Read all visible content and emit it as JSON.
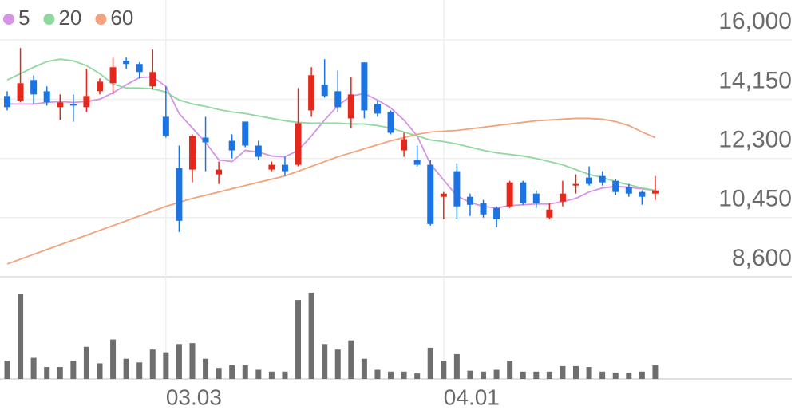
{
  "chart_data": {
    "type": "candlestick",
    "categories": [
      null,
      null,
      null,
      null,
      null,
      null,
      null,
      null,
      null,
      null,
      null,
      null,
      "03.03",
      null,
      null,
      null,
      null,
      null,
      null,
      null,
      null,
      null,
      null,
      null,
      null,
      null,
      null,
      null,
      null,
      null,
      null,
      null,
      null,
      "04.01",
      null,
      null,
      null,
      null,
      null,
      null,
      null,
      null,
      null,
      null,
      null,
      null,
      null,
      null,
      null,
      null
    ],
    "open": [
      14250,
      14100,
      14750,
      14400,
      13900,
      14000,
      13900,
      14400,
      14650,
      15350,
      15250,
      14550,
      13600,
      12000,
      11950,
      12950,
      11800,
      12850,
      13450,
      12700,
      11950,
      12100,
      12100,
      13800,
      14600,
      14400,
      13550,
      15300,
      14000,
      13750,
      12550,
      12250,
      12100,
      11100,
      11900,
      11100,
      10900,
      10750,
      10800,
      11550,
      11200,
      10450,
      10950,
      11450,
      11700,
      11750,
      11600,
      11400,
      11250,
      11200
    ],
    "high": [
      14400,
      15750,
      14900,
      14550,
      14300,
      14300,
      15100,
      14800,
      15450,
      15450,
      15300,
      15700,
      14550,
      12700,
      13050,
      13600,
      12200,
      13050,
      13450,
      12850,
      12200,
      12350,
      14500,
      15150,
      15400,
      15050,
      14850,
      15300,
      14100,
      13800,
      13100,
      12700,
      12250,
      11250,
      12150,
      11200,
      11000,
      10800,
      11600,
      11600,
      11300,
      10900,
      11600,
      11800,
      12050,
      11900,
      11650,
      11500,
      11300,
      11750
    ],
    "low": [
      13800,
      14050,
      14000,
      13950,
      13500,
      13450,
      13750,
      14300,
      14300,
      15100,
      14800,
      14450,
      12950,
      10000,
      11550,
      11900,
      11500,
      12300,
      12650,
      12250,
      11900,
      11750,
      12050,
      13600,
      14200,
      13750,
      13250,
      13550,
      13600,
      13050,
      12350,
      12050,
      10200,
      10400,
      10400,
      10500,
      10450,
      10150,
      10750,
      10850,
      10750,
      10400,
      10800,
      11200,
      11450,
      11450,
      11150,
      11100,
      10850,
      11000
    ],
    "close": [
      13900,
      14650,
      14300,
      14050,
      14050,
      13950,
      14250,
      14700,
      15150,
      15250,
      15000,
      15000,
      13000,
      10350,
      13000,
      12800,
      11950,
      12550,
      12700,
      12350,
      12100,
      11900,
      13400,
      14900,
      14250,
      13900,
      14300,
      13800,
      13700,
      13100,
      12900,
      12100,
      10250,
      11200,
      10800,
      10850,
      10550,
      10400,
      11550,
      10900,
      10900,
      10700,
      11200,
      11500,
      11500,
      11550,
      11250,
      11200,
      11100,
      11300
    ],
    "up_color": "#e5281c",
    "down_color": "#1b74e4",
    "series": [
      {
        "name": "5",
        "color": "#d593e6",
        "values": [
          14000,
          14000,
          14000,
          14050,
          14075,
          14050,
          14075,
          14150,
          14350,
          14600,
          14825,
          14850,
          14550,
          13700,
          13250,
          12800,
          12250,
          12200,
          12550,
          12500,
          12375,
          12350,
          12550,
          13000,
          13500,
          13950,
          14250,
          14325,
          14125,
          13875,
          13500,
          13000,
          12125,
          11625,
          11125,
          10925,
          10800,
          10750,
          10825,
          10850,
          10875,
          10875,
          10950,
          11050,
          11250,
          11375,
          11425,
          11400,
          11350,
          11300
        ]
      },
      {
        "name": "20",
        "color": "#8fd8a0",
        "values": [
          14750,
          14950,
          15150,
          15325,
          15400,
          15350,
          15200,
          14950,
          14625,
          14500,
          14500,
          14475,
          14375,
          14125,
          14000,
          13925,
          13825,
          13750,
          13700,
          13625,
          13550,
          13475,
          13425,
          13400,
          13400,
          13400,
          13375,
          13375,
          13325,
          13250,
          13125,
          13000,
          12875,
          12825,
          12750,
          12650,
          12550,
          12475,
          12425,
          12375,
          12300,
          12200,
          12100,
          11950,
          11800,
          11700,
          11575,
          11475,
          11375,
          11300
        ]
      },
      {
        "name": "60",
        "color": "#f2a27c",
        "values": [
          9000,
          9150,
          9300,
          9450,
          9600,
          9750,
          9900,
          10050,
          10200,
          10350,
          10500,
          10650,
          10800,
          10925,
          11050,
          11150,
          11250,
          11350,
          11450,
          11550,
          11650,
          11750,
          11900,
          12050,
          12200,
          12350,
          12475,
          12600,
          12725,
          12850,
          12950,
          13050,
          13125,
          13150,
          13175,
          13225,
          13275,
          13325,
          13375,
          13425,
          13475,
          13500,
          13525,
          13550,
          13550,
          13525,
          13450,
          13325,
          13125,
          12950
        ]
      }
    ],
    "ylim": [
      8600,
      17250
    ],
    "yticks": [
      {
        "value": 16000,
        "label": "16,000"
      },
      {
        "value": 14150,
        "label": "14,150"
      },
      {
        "value": 12300,
        "label": "12,300"
      },
      {
        "value": 10450,
        "label": "10,450"
      },
      {
        "value": 8600,
        "label": "8,600"
      }
    ],
    "grid": true,
    "volume": {
      "color": "#6e6e6e",
      "ylim": [
        0,
        100
      ],
      "values": [
        20,
        93,
        23,
        13,
        13,
        20,
        35,
        17,
        43,
        22,
        18,
        32,
        29,
        38,
        39,
        22,
        12,
        15,
        15,
        10,
        8,
        8,
        86,
        94,
        38,
        32,
        42,
        22,
        10,
        8,
        8,
        6,
        34,
        20,
        27,
        9,
        8,
        10,
        20,
        8,
        8,
        8,
        14,
        14,
        13,
        8,
        7,
        7,
        8,
        15
      ]
    }
  }
}
